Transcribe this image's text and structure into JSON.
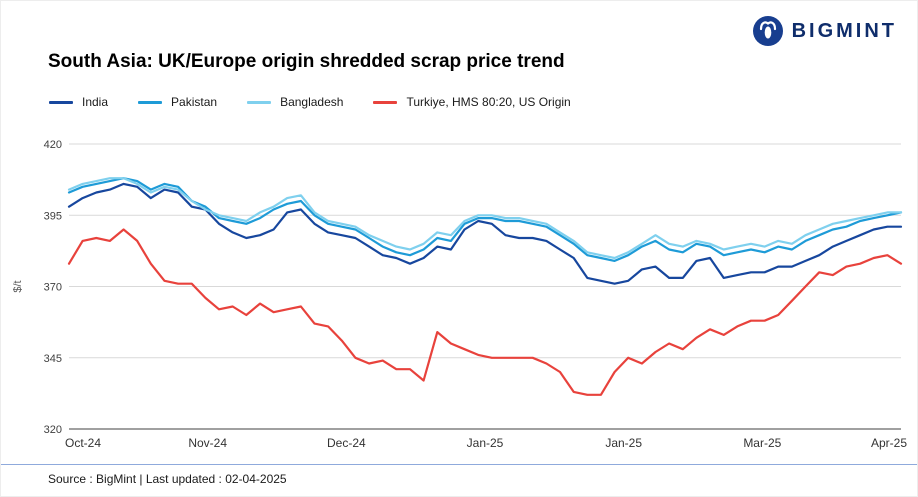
{
  "logo": {
    "text": "BIGMINT"
  },
  "title": "South Asia: UK/Europe origin shredded scrap price trend",
  "legend": [
    {
      "label": "India",
      "color": "#17479e"
    },
    {
      "label": "Pakistan",
      "color": "#1e9bd7"
    },
    {
      "label": "Bangladesh",
      "color": "#7fd0ee"
    },
    {
      "label": "Turkiye, HMS 80:20, US Origin",
      "color": "#e8423c"
    }
  ],
  "footer": {
    "source": "Source : BigMint | Last updated : 02-04-2025"
  },
  "chart_data": {
    "type": "line",
    "title": "South Asia: UK/Europe origin shredded scrap price trend",
    "xlabel": "",
    "ylabel": "$/t",
    "ylim": [
      320,
      420
    ],
    "yticks": [
      320,
      345,
      370,
      395,
      420
    ],
    "x_labels": [
      "Oct-24",
      "Nov-24",
      "Dec-24",
      "Jan-25",
      "Jan-25",
      "Mar-25",
      "Apr-25"
    ],
    "grid": "horizontal",
    "legend_position": "top-left",
    "series": [
      {
        "name": "India",
        "color": "#17479e",
        "values": [
          398,
          401,
          403,
          404,
          406,
          405,
          401,
          404,
          403,
          398,
          397,
          392,
          389,
          387,
          388,
          390,
          396,
          397,
          392,
          389,
          388,
          387,
          384,
          381,
          380,
          378,
          380,
          384,
          383,
          390,
          393,
          392,
          388,
          387,
          387,
          386,
          383,
          380,
          373,
          372,
          371,
          372,
          376,
          377,
          373,
          373,
          379,
          380,
          373,
          374,
          375,
          375,
          377,
          377,
          379,
          381,
          384,
          386,
          388,
          390,
          391,
          391
        ]
      },
      {
        "name": "Pakistan",
        "color": "#1e9bd7",
        "values": [
          403,
          405,
          406,
          407,
          408,
          407,
          404,
          406,
          405,
          400,
          398,
          394,
          393,
          392,
          394,
          397,
          399,
          400,
          395,
          392,
          391,
          390,
          387,
          384,
          382,
          381,
          383,
          387,
          386,
          392,
          394,
          394,
          393,
          393,
          392,
          391,
          388,
          385,
          381,
          380,
          379,
          381,
          384,
          386,
          383,
          382,
          385,
          384,
          381,
          382,
          383,
          382,
          384,
          383,
          386,
          388,
          390,
          391,
          393,
          394,
          395,
          396
        ]
      },
      {
        "name": "Bangladesh",
        "color": "#7fd0ee",
        "values": [
          404,
          406,
          407,
          408,
          408,
          406,
          403,
          405,
          404,
          400,
          397,
          395,
          394,
          393,
          396,
          398,
          401,
          402,
          396,
          393,
          392,
          391,
          388,
          386,
          384,
          383,
          385,
          389,
          388,
          393,
          395,
          395,
          394,
          394,
          393,
          392,
          389,
          386,
          382,
          381,
          380,
          382,
          385,
          388,
          385,
          384,
          386,
          385,
          383,
          384,
          385,
          384,
          386,
          385,
          388,
          390,
          392,
          393,
          394,
          395,
          396,
          396
        ]
      },
      {
        "name": "Turkiye, HMS 80:20, US Origin",
        "color": "#e8423c",
        "values": [
          378,
          386,
          387,
          386,
          390,
          386,
          378,
          372,
          371,
          371,
          366,
          362,
          363,
          360,
          364,
          361,
          362,
          363,
          357,
          356,
          351,
          345,
          343,
          344,
          341,
          341,
          337,
          354,
          350,
          348,
          346,
          345,
          345,
          345,
          345,
          343,
          340,
          333,
          332,
          332,
          340,
          345,
          343,
          347,
          350,
          348,
          352,
          355,
          353,
          356,
          358,
          358,
          360,
          365,
          370,
          375,
          374,
          377,
          378,
          380,
          381,
          378
        ]
      }
    ]
  }
}
